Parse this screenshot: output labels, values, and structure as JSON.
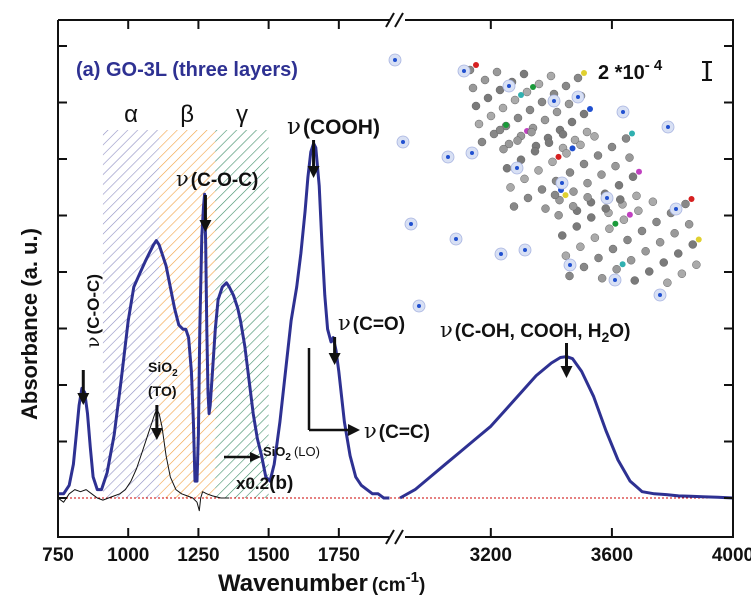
{
  "chart_data": {
    "type": "line",
    "title": "(a) GO-3L (three layers)",
    "xlabel": "Wavenumber",
    "xlabel_unit": "(cm",
    "xlabel_unit_sup": "-1",
    "xlabel_unit_close": ")",
    "ylabel": "Absorbance (a. u.)",
    "x_axis": {
      "segments": [
        {
          "xlim": [
            750,
            1950
          ],
          "ticks": [
            750,
            1000,
            1250,
            1500,
            1750
          ],
          "tick_labels": [
            "750",
            "1000",
            "1250",
            "1500",
            "1750"
          ]
        },
        {
          "xlim": [
            2900,
            4000
          ],
          "ticks": [
            3200,
            3600,
            4000
          ],
          "tick_labels": [
            "3200",
            "3600",
            "4000"
          ]
        }
      ],
      "break": "between 1950 and 2900"
    },
    "y_axis": {
      "ylim": [
        0,
        1
      ],
      "tick_labels_shown": false
    },
    "scale_bar_label": "2 *10",
    "scale_bar_exp": "- 4",
    "baseline_color": "#cc0000",
    "colors": {
      "series_a": "#2e3192",
      "series_b": "#111111",
      "alpha_band": "#7b7bb8",
      "beta_band": "#f09020",
      "gamma_band": "#1e7a4e"
    },
    "series": [
      {
        "name": "(a) GO-3L",
        "color": "#2e3192",
        "x": [
          750,
          770,
          790,
          805,
          815,
          825,
          835,
          845,
          855,
          865,
          875,
          890,
          905,
          925,
          950,
          975,
          1000,
          1020,
          1040,
          1060,
          1075,
          1090,
          1100,
          1110,
          1120,
          1135,
          1150,
          1165,
          1180,
          1195,
          1205,
          1215,
          1225,
          1232,
          1238,
          1245,
          1250,
          1255,
          1262,
          1268,
          1272,
          1276,
          1280,
          1284,
          1288,
          1292,
          1300,
          1310,
          1320,
          1335,
          1350,
          1360,
          1375,
          1390,
          1400,
          1415,
          1430,
          1445,
          1460,
          1475,
          1490,
          1505,
          1520,
          1540,
          1560,
          1580,
          1600,
          1615,
          1630,
          1640,
          1650,
          1660,
          1668,
          1680,
          1690,
          1700,
          1710,
          1722,
          1730,
          1740,
          1750,
          1760,
          1770,
          1790,
          1810,
          1830,
          1850,
          1870,
          1890,
          1910,
          1930
        ],
        "y": [
          0.01,
          0.01,
          0.03,
          0.08,
          0.15,
          0.22,
          0.26,
          0.25,
          0.2,
          0.12,
          0.05,
          0.02,
          0.02,
          0.06,
          0.15,
          0.28,
          0.42,
          0.5,
          0.53,
          0.56,
          0.58,
          0.6,
          0.61,
          0.6,
          0.58,
          0.55,
          0.5,
          0.45,
          0.41,
          0.4,
          0.4,
          0.38,
          0.3,
          0.18,
          0.04,
          0.04,
          0.15,
          0.4,
          0.62,
          0.69,
          0.72,
          0.6,
          0.4,
          0.25,
          0.2,
          0.22,
          0.3,
          0.4,
          0.47,
          0.5,
          0.51,
          0.5,
          0.48,
          0.45,
          0.42,
          0.36,
          0.28,
          0.2,
          0.14,
          0.1,
          0.05,
          0.04,
          0.08,
          0.18,
          0.3,
          0.42,
          0.5,
          0.58,
          0.68,
          0.76,
          0.82,
          0.84,
          0.83,
          0.74,
          0.6,
          0.48,
          0.4,
          0.37,
          0.38,
          0.35,
          0.3,
          0.24,
          0.18,
          0.1,
          0.05,
          0.03,
          0.02,
          0.01,
          0.01,
          0.0,
          0.0
        ]
      },
      {
        "name": "(a) GO-3L",
        "color": "#2e3192",
        "x": [
          2900,
          2950,
          3000,
          3050,
          3100,
          3150,
          3200,
          3250,
          3300,
          3350,
          3400,
          3430,
          3450,
          3470,
          3500,
          3540,
          3580,
          3620,
          3660,
          3700,
          3740,
          3780,
          3820,
          3860,
          3900,
          3950,
          4000
        ],
        "y": [
          0.0,
          0.02,
          0.05,
          0.08,
          0.11,
          0.14,
          0.17,
          0.21,
          0.25,
          0.29,
          0.32,
          0.333,
          0.335,
          0.33,
          0.3,
          0.24,
          0.16,
          0.09,
          0.04,
          0.015,
          0.01,
          0.008,
          0.005,
          0.004,
          0.003,
          0.002,
          0.0
        ]
      },
      {
        "name": "(b)",
        "color": "#111111",
        "x": [
          750,
          770,
          790,
          810,
          830,
          850,
          870,
          890,
          910,
          930,
          950,
          970,
          990,
          1010,
          1030,
          1050,
          1070,
          1085,
          1095,
          1102,
          1110,
          1120,
          1135,
          1150,
          1170,
          1190,
          1210,
          1230,
          1245,
          1253,
          1258,
          1265,
          1280,
          1300,
          1330,
          1360
        ],
        "y": [
          0.0,
          -0.01,
          0.01,
          0.02,
          0.015,
          0.02,
          0.01,
          0.0,
          -0.005,
          0.0,
          0.005,
          0.01,
          0.02,
          0.04,
          0.07,
          0.11,
          0.15,
          0.18,
          0.2,
          0.21,
          0.2,
          0.17,
          0.1,
          0.05,
          0.02,
          0.01,
          0.005,
          0.0,
          -0.01,
          -0.03,
          0.0,
          0.015,
          0.01,
          0.005,
          0.0,
          0.0
        ]
      }
    ],
    "bands": [
      {
        "name": "α",
        "x": [
          910,
          1110
        ]
      },
      {
        "name": "β",
        "x": [
          1110,
          1310
        ]
      },
      {
        "name": "γ",
        "x": [
          1310,
          1500
        ]
      }
    ],
    "annotations": [
      {
        "id": "coc1",
        "text": "ν",
        "sub": "(C-O-C",
        "close": ")",
        "x": 840,
        "y": 0.26
      },
      {
        "id": "sio2to",
        "text": "SiO",
        "sub2": "2",
        "extra": "(TO)",
        "x": 1102,
        "y": 0.21
      },
      {
        "id": "coc2",
        "text": "ν",
        "sub": "(C-O-C",
        "close": ")",
        "x": 1275,
        "y": 0.72
      },
      {
        "id": "cooh",
        "text": "ν",
        "sub": "(COOH",
        "close": ")",
        "x": 1660,
        "y": 0.84
      },
      {
        "id": "co",
        "text": "ν",
        "sub": "(C=O",
        "close": ")",
        "x": 1735,
        "y": 0.38
      },
      {
        "id": "cc",
        "text": "ν",
        "sub": "(C=C",
        "close": ")",
        "x": 1640,
        "y": 0.2
      },
      {
        "id": "sio2lo",
        "text": "SiO",
        "sub2": "2",
        "extra": "(LO)",
        "x": 1310,
        "y": 0.12
      },
      {
        "id": "mult",
        "text": "x0.2",
        "extra": "(b)",
        "x": 1300,
        "y": 0.05
      },
      {
        "id": "oh",
        "text": "ν",
        "sub": "(C-OH, COOH, H",
        "sub2": "2",
        "close": "O)",
        "x": 3450,
        "y": 0.335
      }
    ]
  }
}
